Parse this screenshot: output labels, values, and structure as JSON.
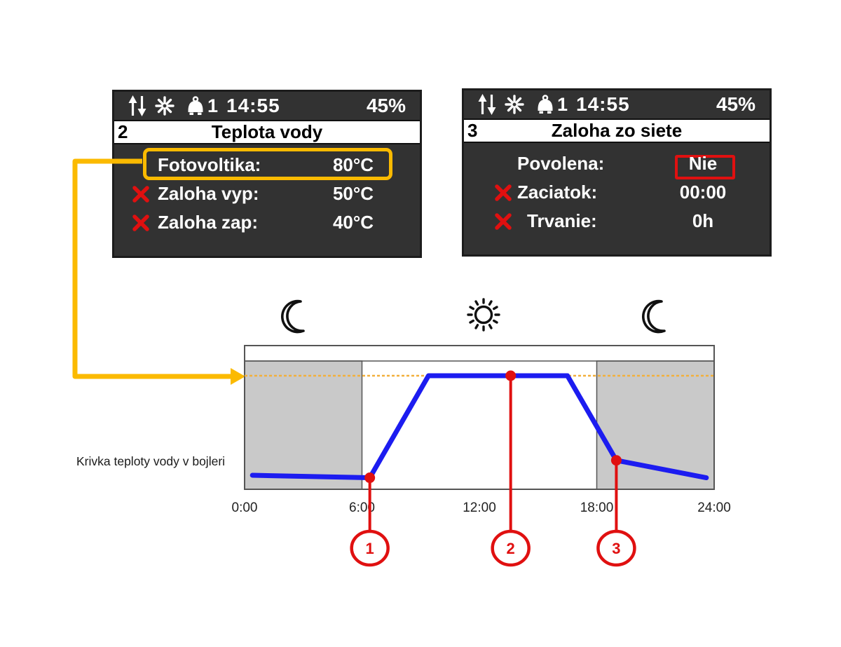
{
  "colors": {
    "panel_bg": "#323232",
    "accent_yellow": "#FBBA00",
    "alert_red": "#E01010",
    "curve_blue": "#1C1CF0",
    "night_gray": "#C9C9C9",
    "threshold_orange": "#F2B03C",
    "chart_border": "#555555"
  },
  "screens": [
    {
      "screen_number": "2",
      "status_bar": {
        "icons": [
          "up-down-arrows-icon",
          "sun-icon",
          "bell-icon"
        ],
        "alarm_count": "1",
        "time": "14:55",
        "battery_percent": "45%"
      },
      "title": "Teplota vody",
      "rows": [
        {
          "label": "Fotovoltika:",
          "value": "80°C",
          "disabled": false,
          "highlighted": true
        },
        {
          "label": "Zaloha vyp:",
          "value": "50°C",
          "disabled": true
        },
        {
          "label": "Zaloha zap:",
          "value": "40°C",
          "disabled": true
        }
      ]
    },
    {
      "screen_number": "3",
      "status_bar": {
        "icons": [
          "up-down-arrows-icon",
          "sun-icon",
          "bell-icon"
        ],
        "alarm_count": "1",
        "time": "14:55",
        "battery_percent": "45%"
      },
      "title": "Zaloha zo siete",
      "rows": [
        {
          "label": "Povolena:",
          "value": "Nie",
          "disabled": false,
          "value_boxed": true
        },
        {
          "label": "Zaciatok:",
          "value": "00:00",
          "disabled": true
        },
        {
          "label": "Trvanie:",
          "value": "0h",
          "disabled": true
        }
      ]
    }
  ],
  "timeline_icons": [
    "moon-icon",
    "sun-icon",
    "moon-icon"
  ],
  "chart_data": {
    "type": "line",
    "title": "Krivka teploty vody v bojleri",
    "xlabel": "",
    "ylabel": "",
    "x_range_hours": [
      0,
      24
    ],
    "x_ticks": [
      {
        "label": "0:00",
        "t": 0
      },
      {
        "label": "6:00",
        "t": 6
      },
      {
        "label": "12:00",
        "t": 12
      },
      {
        "label": "18:00",
        "t": 18
      },
      {
        "label": "24:00",
        "t": 24
      }
    ],
    "night_regions_hours": [
      [
        0,
        6
      ],
      [
        18,
        24
      ]
    ],
    "day_region_hours": [
      6,
      18
    ],
    "grid": false,
    "legend_position": "none",
    "threshold": {
      "value_c": 80,
      "source_setting": "Fotovoltika: 80°C",
      "style": "dotted"
    },
    "series": [
      {
        "name": "Teplota vody v bojleri",
        "unit": "°C",
        "color": "#1C1CF0",
        "points": [
          {
            "t": 0.4,
            "temp_c": 40
          },
          {
            "t": 6.4,
            "temp_c": 39
          },
          {
            "t": 9.4,
            "temp_c": 80
          },
          {
            "t": 16.5,
            "temp_c": 80
          },
          {
            "t": 19.0,
            "temp_c": 46
          },
          {
            "t": 23.6,
            "temp_c": 39
          }
        ]
      }
    ],
    "markers": [
      {
        "label": "1",
        "t": 6.4,
        "temp_c": 39
      },
      {
        "label": "2",
        "t": 13.6,
        "temp_c": 80
      },
      {
        "label": "3",
        "t": 19.0,
        "temp_c": 46
      }
    ]
  }
}
